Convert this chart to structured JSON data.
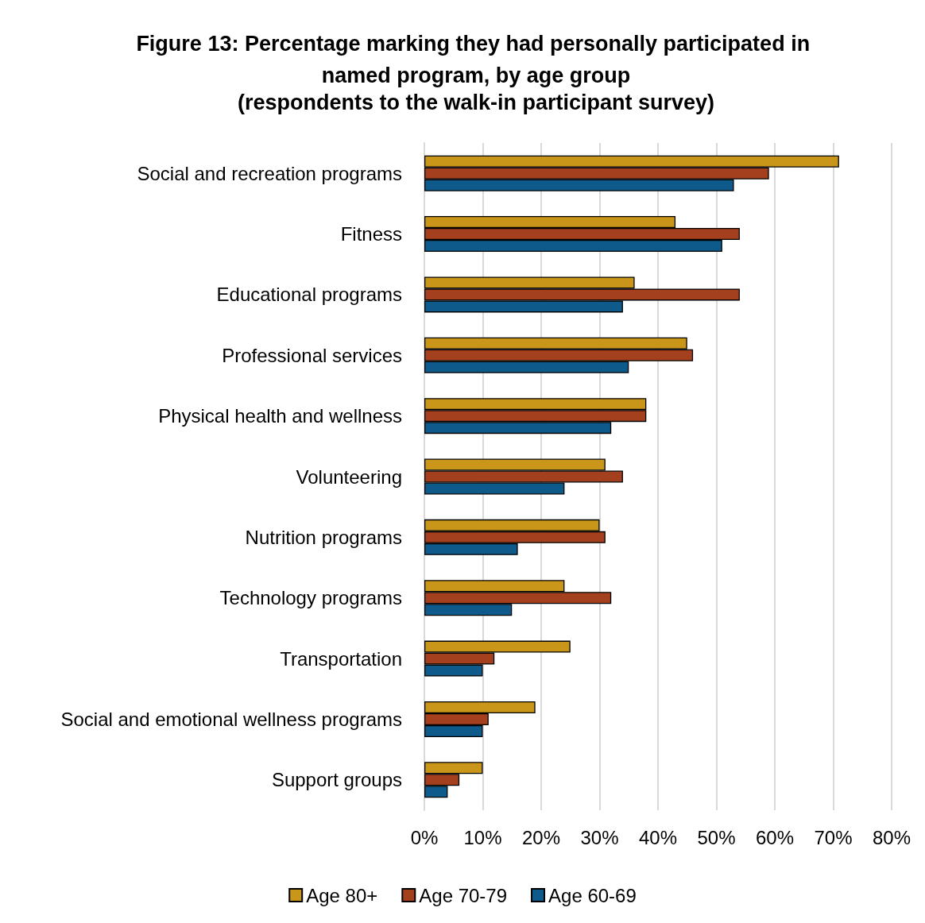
{
  "chart_data": {
    "type": "bar",
    "orientation": "horizontal",
    "title": "Figure 13: Percentage marking they had personally participated in named program, by age group",
    "subtitle": "(respondents to the walk-in participant survey)",
    "categories": [
      "Social and recreation programs",
      "Fitness",
      "Educational programs",
      "Professional services",
      "Physical health and wellness",
      "Volunteering",
      "Nutrition programs",
      "Technology programs",
      "Transportation",
      "Social and emotional wellness programs",
      "Support groups"
    ],
    "series": [
      {
        "name": "Age 80+",
        "color": "#c9961a",
        "values": [
          71,
          43,
          36,
          45,
          38,
          31,
          30,
          24,
          25,
          19,
          10
        ]
      },
      {
        "name": "Age 70-79",
        "color": "#a5401f",
        "values": [
          59,
          54,
          54,
          46,
          38,
          34,
          31,
          32,
          12,
          11,
          6
        ]
      },
      {
        "name": "Age 60-69",
        "color": "#0e5a8a",
        "values": [
          53,
          51,
          34,
          35,
          32,
          24,
          16,
          15,
          10,
          10,
          4
        ]
      }
    ],
    "xlim": [
      0,
      80
    ],
    "xticks": [
      {
        "value": 0,
        "label": "0%"
      },
      {
        "value": 10,
        "label": "10%"
      },
      {
        "value": 20,
        "label": "20%"
      },
      {
        "value": 30,
        "label": "30%"
      },
      {
        "value": 40,
        "label": "40%"
      },
      {
        "value": 50,
        "label": "50%"
      },
      {
        "value": 60,
        "label": "60%"
      },
      {
        "value": 70,
        "label": "70%"
      },
      {
        "value": 80,
        "label": "80%"
      }
    ],
    "grid": "x",
    "legend": "bottom"
  }
}
